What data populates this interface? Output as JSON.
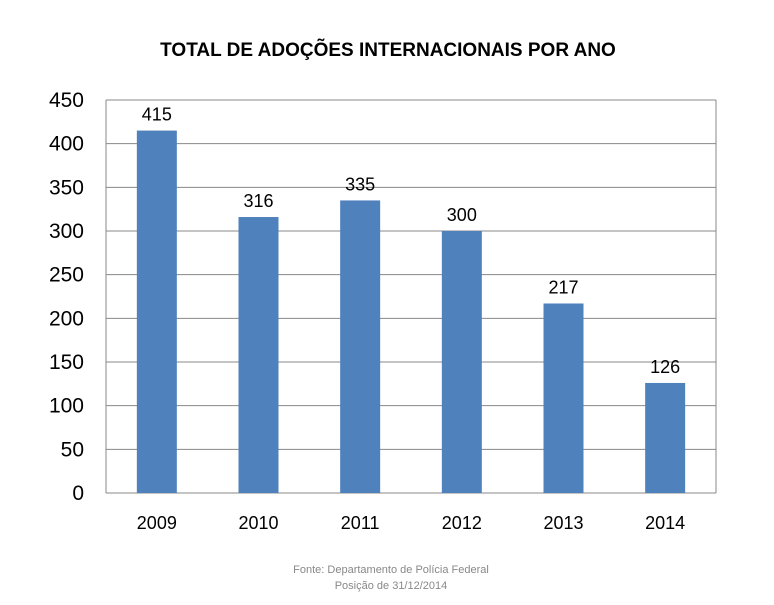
{
  "chart_data": {
    "type": "bar",
    "title": "TOTAL DE ADOÇÕES INTERNACIONAIS POR ANO",
    "categories": [
      "2009",
      "2010",
      "2011",
      "2012",
      "2013",
      "2014"
    ],
    "values": [
      415,
      316,
      335,
      300,
      217,
      126
    ],
    "data_labels": [
      "415",
      "316",
      "335",
      "300",
      "217",
      "126"
    ],
    "ylim": [
      0,
      450
    ],
    "yticks": [
      0,
      50,
      100,
      150,
      200,
      250,
      300,
      350,
      400,
      450
    ],
    "grid": true,
    "bar_color": "#4f81bd",
    "xlabel": "",
    "ylabel": ""
  },
  "footer": {
    "source": "Fonte: Departamento de Polícia Federal",
    "date": "Posição de 31/12/2014"
  }
}
